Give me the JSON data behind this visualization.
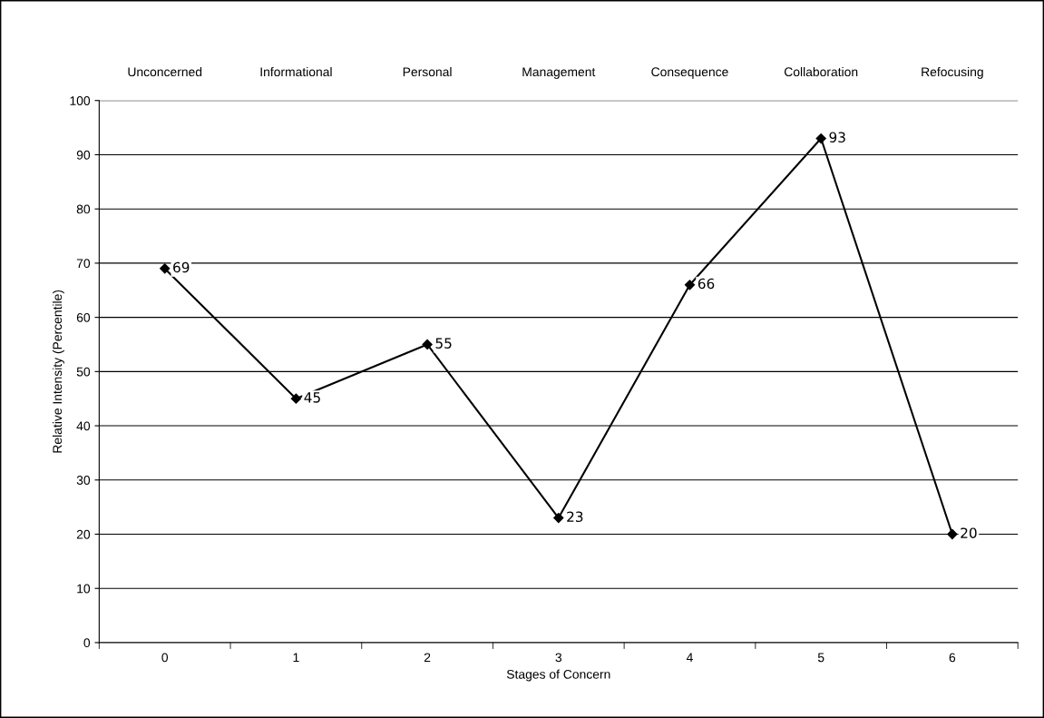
{
  "chart_data": {
    "type": "line",
    "xlabel": "Stages of Concern",
    "ylabel": "Relative Intensity (Percentile)",
    "categories": [
      "0",
      "1",
      "2",
      "3",
      "4",
      "5",
      "6"
    ],
    "series": [
      {
        "color": "#000000",
        "values": [
          69,
          45,
          55,
          23,
          66,
          93,
          20
        ]
      }
    ],
    "annotations": [
      "Unconcerned",
      "Informational",
      "Personal",
      "Management",
      "Consequence",
      "Collaboration",
      "Refocusing"
    ],
    "ylim": [
      0,
      100
    ],
    "yticks": [
      0,
      10,
      20,
      30,
      40,
      50,
      60,
      70,
      80,
      90,
      100
    ],
    "grid": "y",
    "marker": "diamond",
    "line_style": "solid",
    "data_labels": true
  }
}
